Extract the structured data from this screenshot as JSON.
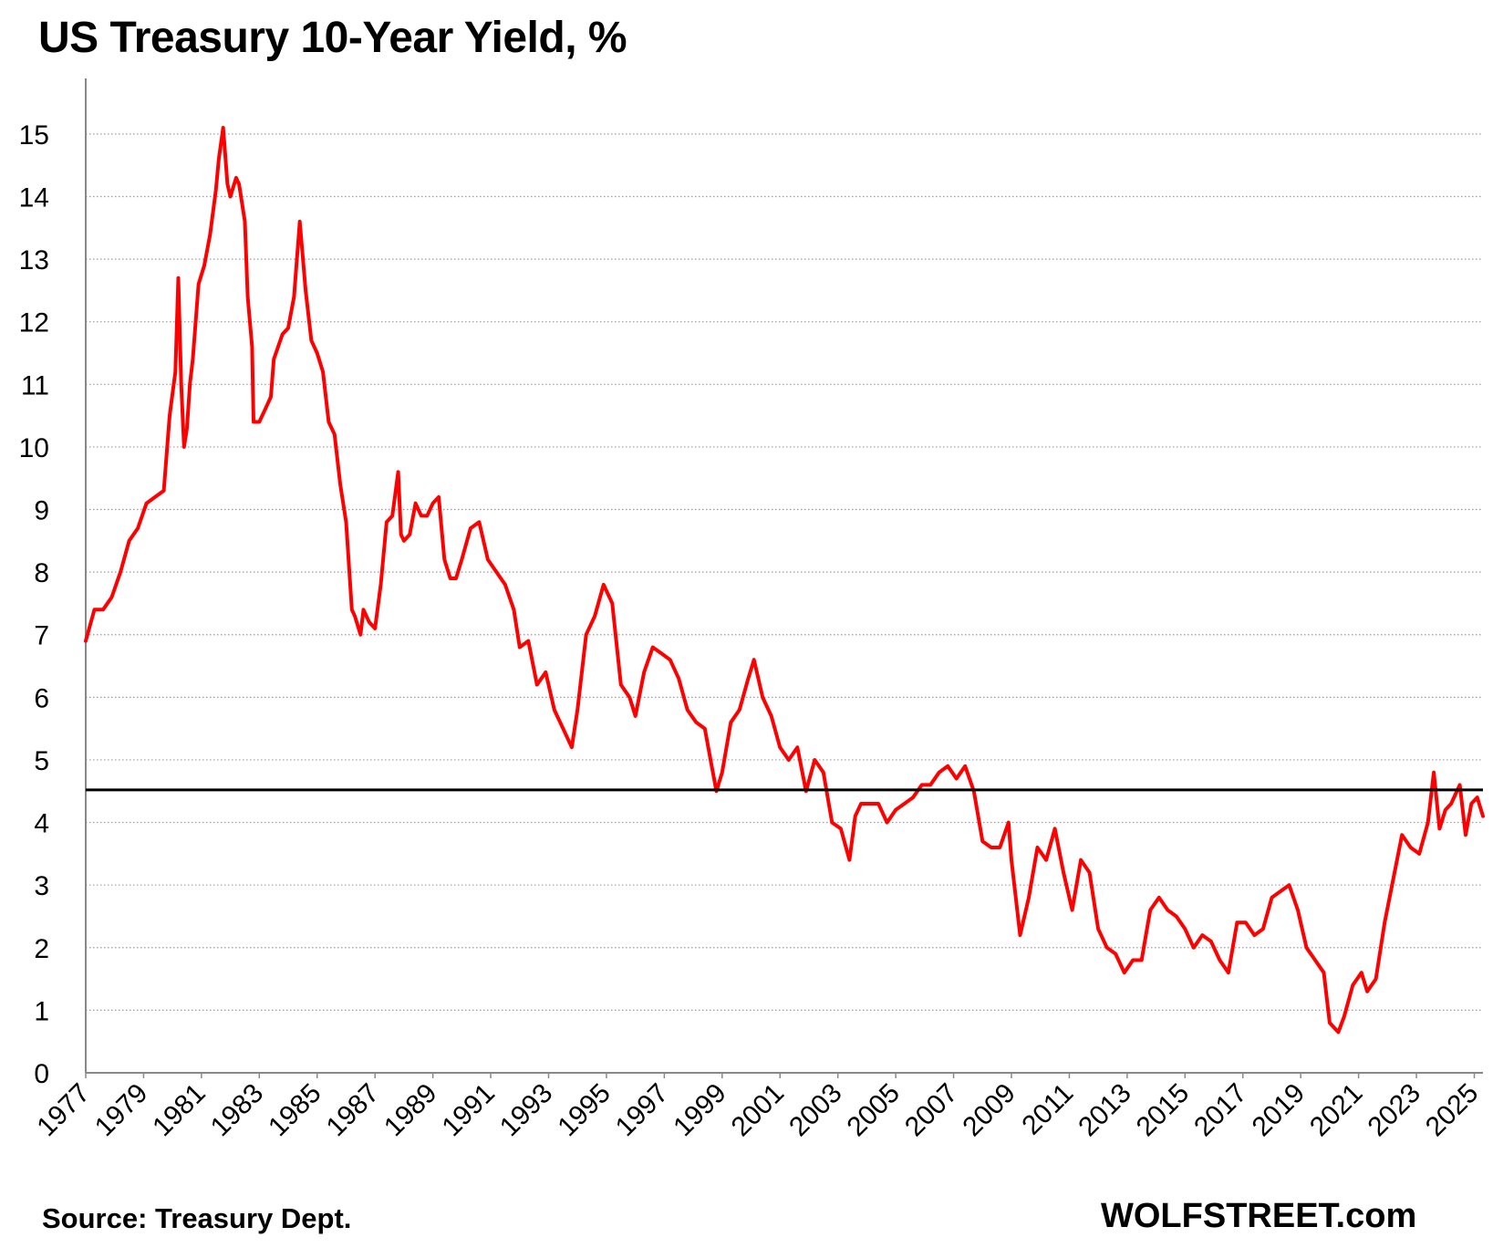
{
  "title": "US Treasury 10-Year Yield, %",
  "source": "Source: Treasury Dept.",
  "brand": "WOLFSTREET.com",
  "colors": {
    "line": "#ff0000",
    "reference": "#000000",
    "grid": "#9a9aa6",
    "axis": "#888888",
    "text": "#000000"
  },
  "chart_data": {
    "type": "line",
    "title": "US Treasury 10-Year Yield, %",
    "xlabel": "",
    "ylabel": "",
    "xlim": [
      1977.0,
      2025.3
    ],
    "ylim": [
      0,
      15.8
    ],
    "yticks": [
      0,
      1,
      2,
      3,
      4,
      5,
      6,
      7,
      8,
      9,
      10,
      11,
      12,
      13,
      14,
      15
    ],
    "xtick_labels": [
      "1977",
      "1979",
      "1981",
      "1983",
      "1985",
      "1987",
      "1989",
      "1991",
      "1993",
      "1995",
      "1997",
      "1999",
      "2001",
      "2003",
      "2005",
      "2007",
      "2009",
      "2011",
      "2013",
      "2015",
      "2017",
      "2019",
      "2021",
      "2023",
      "2025"
    ],
    "grid": "horizontal dotted",
    "reference_line": {
      "y": 4.52
    },
    "series": [
      {
        "x": [
          1977.0,
          1977.3,
          1977.6,
          1977.9,
          1978.2,
          1978.5,
          1978.8,
          1979.1,
          1979.4,
          1979.7,
          1979.9,
          1980.1,
          1980.2,
          1980.3,
          1980.4,
          1980.5,
          1980.6,
          1980.7,
          1980.9,
          1981.1,
          1981.3,
          1981.5,
          1981.6,
          1981.75,
          1981.9,
          1982.0,
          1982.2,
          1982.3,
          1982.5,
          1982.6,
          1982.75,
          1982.8,
          1983.0,
          1983.2,
          1983.4,
          1983.5,
          1983.8,
          1984.0,
          1984.2,
          1984.4,
          1984.6,
          1984.8,
          1985.0,
          1985.2,
          1985.4,
          1985.6,
          1985.8,
          1986.0,
          1986.2,
          1986.3,
          1986.5,
          1986.6,
          1986.8,
          1987.0,
          1987.2,
          1987.4,
          1987.6,
          1987.8,
          1987.9,
          1988.0,
          1988.2,
          1988.4,
          1988.6,
          1988.8,
          1989.0,
          1989.2,
          1989.4,
          1989.6,
          1989.8,
          1990.0,
          1990.3,
          1990.6,
          1990.9,
          1991.2,
          1991.5,
          1991.8,
          1992.0,
          1992.3,
          1992.6,
          1992.9,
          1993.2,
          1993.5,
          1993.8,
          1994.0,
          1994.3,
          1994.6,
          1994.9,
          1995.2,
          1995.5,
          1995.8,
          1996.0,
          1996.3,
          1996.6,
          1996.9,
          1997.2,
          1997.5,
          1997.8,
          1998.1,
          1998.4,
          1998.6,
          1998.8,
          1999.0,
          1999.3,
          1999.6,
          1999.9,
          2000.1,
          2000.4,
          2000.7,
          2001.0,
          2001.3,
          2001.6,
          2001.9,
          2002.2,
          2002.5,
          2002.8,
          2003.1,
          2003.4,
          2003.6,
          2003.8,
          2004.1,
          2004.4,
          2004.7,
          2005.0,
          2005.3,
          2005.6,
          2005.9,
          2006.2,
          2006.5,
          2006.8,
          2007.1,
          2007.4,
          2007.7,
          2008.0,
          2008.3,
          2008.6,
          2008.9,
          2009.0,
          2009.3,
          2009.6,
          2009.9,
          2010.2,
          2010.5,
          2010.8,
          2011.1,
          2011.4,
          2011.7,
          2012.0,
          2012.3,
          2012.6,
          2012.9,
          2013.2,
          2013.5,
          2013.8,
          2014.1,
          2014.4,
          2014.7,
          2015.0,
          2015.3,
          2015.6,
          2015.9,
          2016.2,
          2016.5,
          2016.8,
          2017.1,
          2017.4,
          2017.7,
          2018.0,
          2018.3,
          2018.6,
          2018.9,
          2019.2,
          2019.5,
          2019.8,
          2020.0,
          2020.2,
          2020.3,
          2020.5,
          2020.8,
          2021.1,
          2021.3,
          2021.6,
          2021.9,
          2022.2,
          2022.5,
          2022.8,
          2023.1,
          2023.4,
          2023.6,
          2023.8,
          2024.0,
          2024.2,
          2024.5,
          2024.7,
          2024.9,
          2025.1,
          2025.3
        ],
        "values": [
          6.9,
          7.4,
          7.4,
          7.6,
          8.0,
          8.5,
          8.7,
          9.1,
          9.2,
          9.3,
          10.5,
          11.2,
          12.7,
          11.0,
          10.0,
          10.3,
          11.0,
          11.4,
          12.6,
          12.9,
          13.4,
          14.1,
          14.6,
          15.1,
          14.2,
          14.0,
          14.3,
          14.2,
          13.6,
          12.4,
          11.6,
          10.4,
          10.4,
          10.6,
          10.8,
          11.4,
          11.8,
          11.9,
          12.4,
          13.6,
          12.5,
          11.7,
          11.5,
          11.2,
          10.4,
          10.2,
          9.4,
          8.8,
          7.4,
          7.3,
          7.0,
          7.4,
          7.2,
          7.1,
          7.8,
          8.8,
          8.9,
          9.6,
          8.6,
          8.5,
          8.6,
          9.1,
          8.9,
          8.9,
          9.1,
          9.2,
          8.2,
          7.9,
          7.9,
          8.2,
          8.7,
          8.8,
          8.2,
          8.0,
          7.8,
          7.4,
          6.8,
          6.9,
          6.2,
          6.4,
          5.8,
          5.5,
          5.2,
          5.8,
          7.0,
          7.3,
          7.8,
          7.5,
          6.2,
          6.0,
          5.7,
          6.4,
          6.8,
          6.7,
          6.6,
          6.3,
          5.8,
          5.6,
          5.5,
          5.0,
          4.5,
          4.8,
          5.6,
          5.8,
          6.3,
          6.6,
          6.0,
          5.7,
          5.2,
          5.0,
          5.2,
          4.5,
          5.0,
          4.8,
          4.0,
          3.9,
          3.4,
          4.1,
          4.3,
          4.3,
          4.3,
          4.0,
          4.2,
          4.3,
          4.4,
          4.6,
          4.6,
          4.8,
          4.9,
          4.7,
          4.9,
          4.5,
          3.7,
          3.6,
          3.6,
          4.0,
          3.4,
          2.2,
          2.8,
          3.6,
          3.4,
          3.9,
          3.2,
          2.6,
          3.4,
          3.2,
          2.3,
          2.0,
          1.9,
          1.6,
          1.8,
          1.8,
          2.6,
          2.8,
          2.6,
          2.5,
          2.3,
          2.0,
          2.2,
          2.1,
          1.8,
          1.6,
          2.4,
          2.4,
          2.2,
          2.3,
          2.8,
          2.9,
          3.0,
          2.6,
          2.0,
          1.8,
          1.6,
          0.8,
          0.7,
          0.65,
          0.9,
          1.4,
          1.6,
          1.3,
          1.5,
          2.4,
          3.1,
          3.8,
          3.6,
          3.5,
          4.0,
          4.8,
          3.9,
          4.2,
          4.3,
          4.6,
          3.8,
          4.3,
          4.4,
          4.1
        ]
      }
    ]
  }
}
